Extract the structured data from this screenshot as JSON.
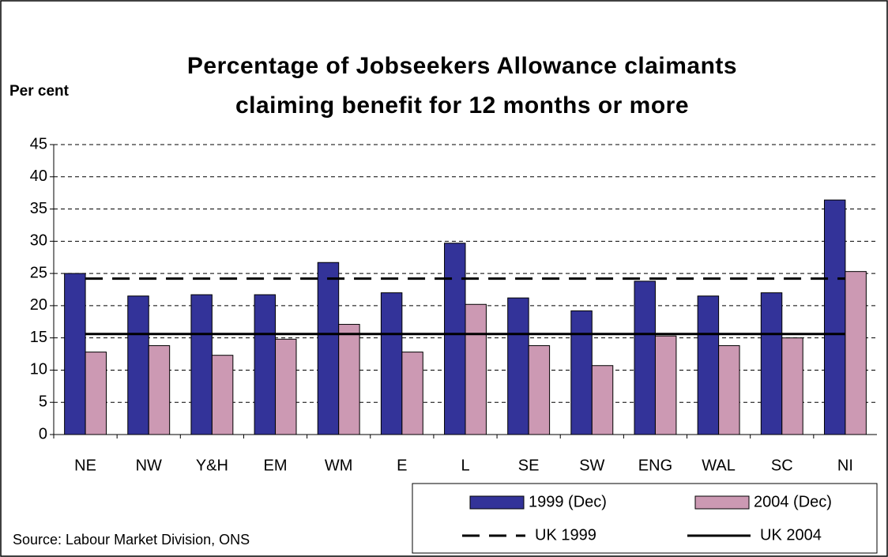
{
  "chart_data": {
    "type": "bar",
    "title": [
      "Percentage of Jobseekers Allowance claimants",
      "claiming benefit for 12 months or more"
    ],
    "y_label": "Per cent",
    "source": "Source: Labour Market Division, ONS",
    "categories": [
      "NE",
      "NW",
      "Y&H",
      "EM",
      "WM",
      "E",
      "L",
      "SE",
      "SW",
      "ENG",
      "WAL",
      "SC",
      "NI"
    ],
    "series": [
      {
        "name": "1999 (Dec)",
        "color": "#333399",
        "values": [
          25,
          21.5,
          21.7,
          21.7,
          26.7,
          22,
          29.7,
          21.2,
          19.2,
          23.8,
          21.5,
          22,
          36.4
        ]
      },
      {
        "name": "2004 (Dec)",
        "color": "#cc99b3",
        "values": [
          12.8,
          13.8,
          12.3,
          14.8,
          17.1,
          12.8,
          20.2,
          13.8,
          10.7,
          15.3,
          13.8,
          15,
          25.3
        ]
      }
    ],
    "lines": [
      {
        "name": "UK 1999",
        "color": "#000000",
        "dashed": true,
        "values": [
          24.2,
          24.2,
          24.2,
          24.2,
          24.2,
          24.2,
          24.2,
          24.2,
          24.2,
          24.2,
          24.2,
          24.2,
          24.2
        ]
      },
      {
        "name": "UK 2004",
        "color": "#000000",
        "dashed": false,
        "values": [
          15.6,
          15.6,
          15.6,
          15.6,
          15.6,
          15.6,
          15.6,
          15.6,
          15.6,
          15.6,
          15.6,
          15.6,
          15.6
        ]
      }
    ],
    "ylim": [
      0,
      45
    ],
    "yticks": [
      0,
      5,
      10,
      15,
      20,
      25,
      30,
      35,
      40,
      45
    ],
    "grid": true
  }
}
